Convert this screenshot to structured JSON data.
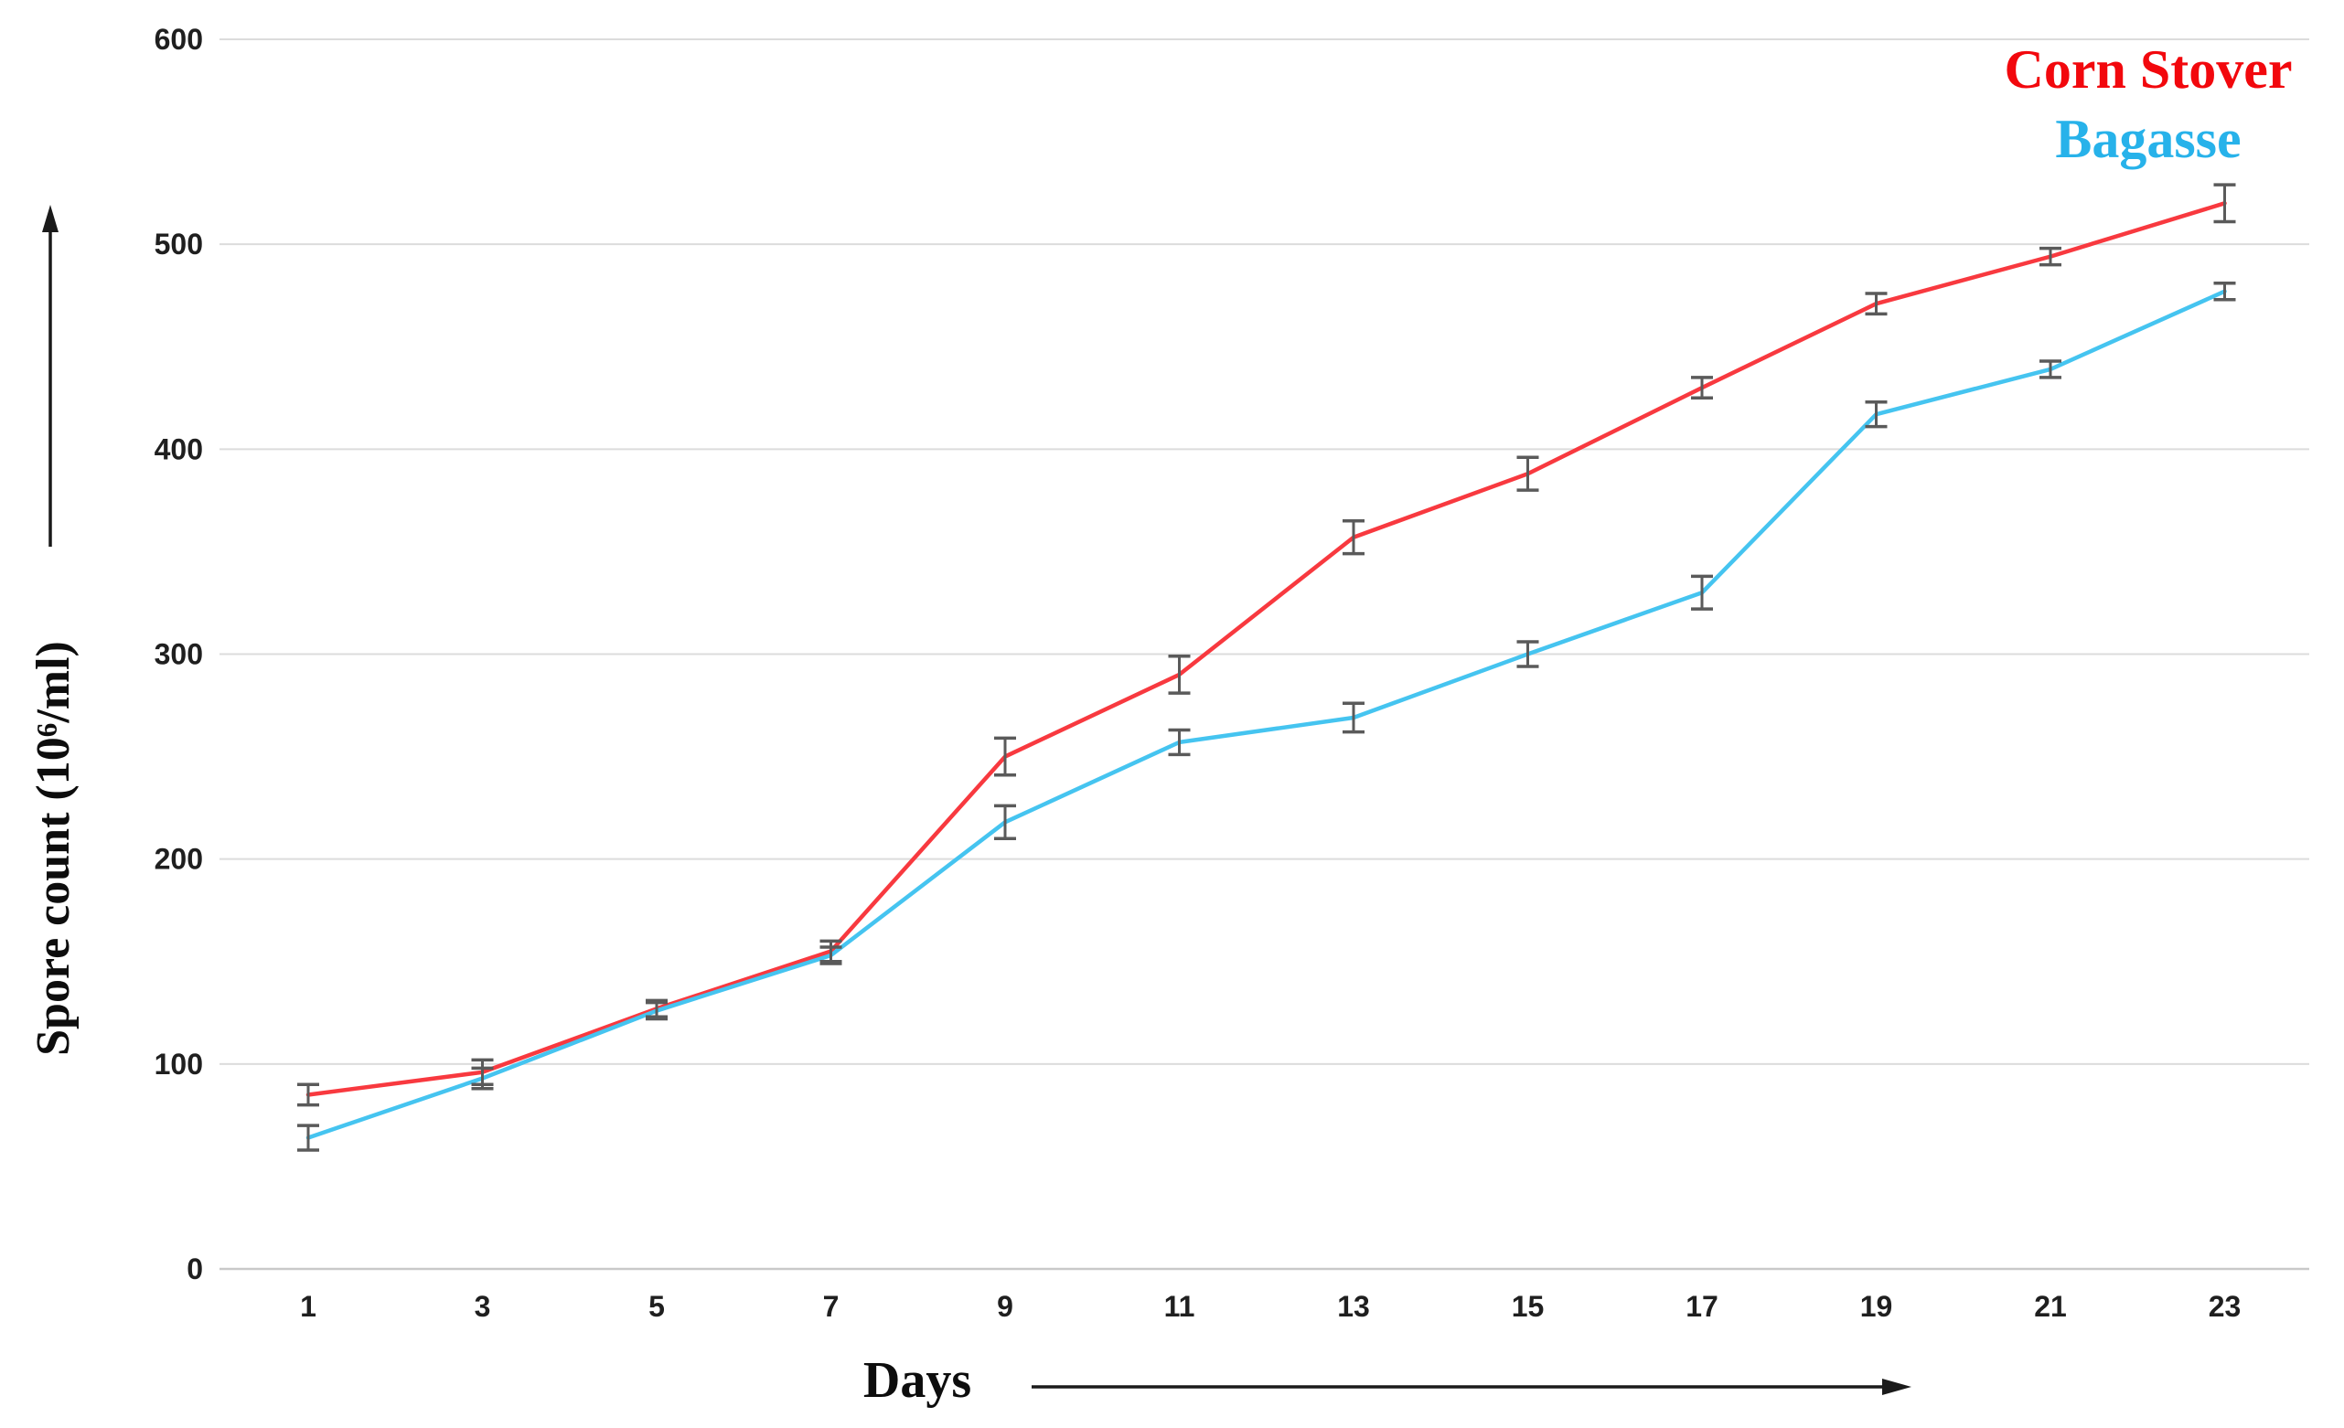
{
  "figure": {
    "background": "#ffffff"
  },
  "legend": {
    "position": "top-right",
    "items": [
      {
        "label": "Corn Stover",
        "color": "#f2080d"
      },
      {
        "label": "Bagasse",
        "color": "#27b2ea"
      }
    ]
  },
  "chart_data": {
    "type": "line",
    "title": "",
    "xlabel": "Days",
    "ylabel": "Spore count (10⁶/ml)",
    "x": [
      1,
      3,
      5,
      7,
      9,
      11,
      13,
      15,
      17,
      19,
      21,
      23
    ],
    "y_ticks": [
      0,
      100,
      200,
      300,
      400,
      500,
      600
    ],
    "ylim": [
      0,
      600
    ],
    "grid": "horizontal-only",
    "grid_color": "#dcdcdc",
    "zero_line_color": "#c9c9c9",
    "tick_label_color": "#1f1f1f",
    "error_bar_color": "#5a5a5a",
    "axis_arrow_color": "#1a1a1a",
    "legend_position": "top-right",
    "series": [
      {
        "name": "Corn Stover",
        "color": "#f8393f",
        "values": [
          85,
          96,
          127,
          155,
          250,
          290,
          357,
          388,
          430,
          471,
          494,
          520
        ],
        "errors": [
          5,
          6,
          4,
          5,
          9,
          9,
          8,
          8,
          5,
          5,
          4,
          9
        ]
      },
      {
        "name": "Bagasse",
        "color": "#45c4f0",
        "values": [
          64,
          93,
          126,
          153,
          218,
          257,
          269,
          300,
          330,
          417,
          439,
          477
        ],
        "errors": [
          6,
          5,
          4,
          4,
          8,
          6,
          7,
          6,
          8,
          6,
          4,
          4
        ]
      }
    ]
  }
}
